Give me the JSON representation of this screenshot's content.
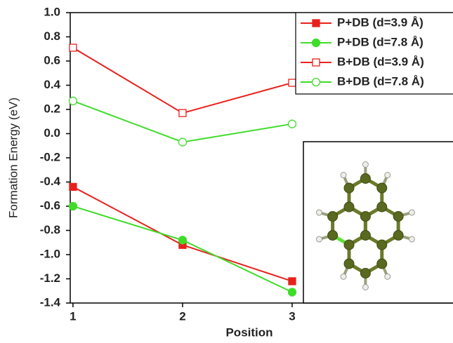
{
  "chart_data": {
    "type": "line",
    "x_label": "Position",
    "y_label": "Formation Energy (eV)",
    "x": [
      1,
      2,
      3
    ],
    "xlim": [
      0.975,
      4.468
    ],
    "xticks": [
      1,
      2,
      3
    ],
    "ylim": [
      -1.4,
      1.0
    ],
    "yticks": [
      {
        "value": 1.0,
        "label": "1.0"
      },
      0.8,
      0.6,
      0.4,
      0.2,
      {
        "value": 0.0,
        "label": "0.0"
      },
      -0.2,
      -0.4,
      -0.6,
      -0.8,
      {
        "value": -1.0,
        "label": "-1.0"
      },
      -1.2,
      -1.4
    ],
    "legend": "top-right",
    "series": [
      {
        "name": "P+DB (d=3.9 Å)",
        "color": "#e8211c",
        "marker": "square",
        "filled": true,
        "values": [
          -0.44,
          -0.92,
          -1.22
        ]
      },
      {
        "name": "P+DB (d=7.8 Å)",
        "color": "#3fdc2a",
        "marker": "circle",
        "filled": true,
        "values": [
          -0.6,
          -0.88,
          -1.31
        ]
      },
      {
        "name": "B+DB (d=3.9 Å)",
        "color": "#e8211c",
        "marker": "square",
        "filled": false,
        "values": [
          0.71,
          0.17,
          0.42
        ]
      },
      {
        "name": "B+DB (d=7.8 Å)",
        "color": "#3fdc2a",
        "marker": "circle",
        "filled": false,
        "values": [
          0.27,
          -0.07,
          0.08
        ]
      }
    ]
  }
}
